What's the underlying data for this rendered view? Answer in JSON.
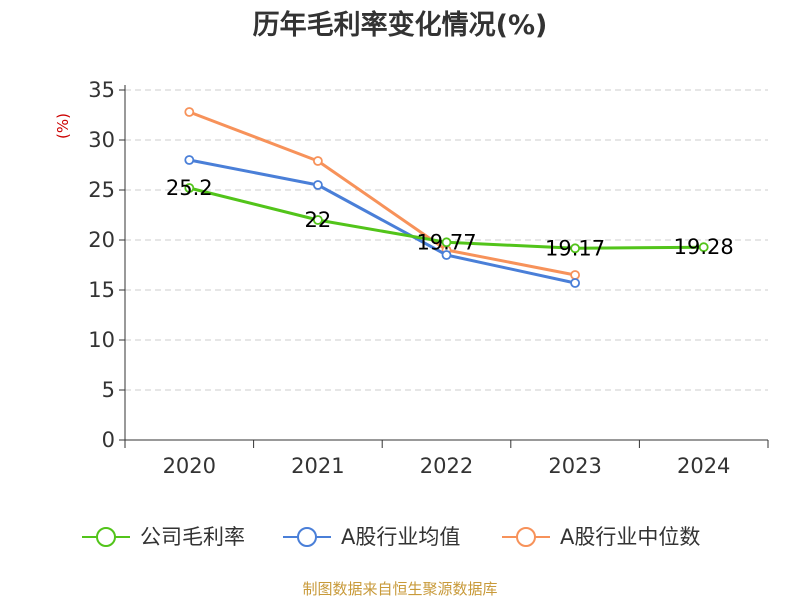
{
  "chart_data": {
    "type": "line",
    "title": "历年毛利率变化情况(%)",
    "ylabel": "(%)",
    "xlabel": "",
    "categories": [
      "2020",
      "2021",
      "2022",
      "2023",
      "2024"
    ],
    "ylim": [
      0,
      35
    ],
    "yticks": [
      0,
      5,
      10,
      15,
      20,
      25,
      30,
      35
    ],
    "grid": true,
    "legend_position": "bottom",
    "series": [
      {
        "name": "公司毛利率",
        "color": "#52c41a",
        "values": [
          25.2,
          22,
          19.77,
          19.17,
          19.28
        ],
        "labels": [
          "25.2",
          "22",
          "19.77",
          "19.17",
          "19.28"
        ]
      },
      {
        "name": "A股行业均值",
        "color": "#4a7fd8",
        "values": [
          28.0,
          25.5,
          18.5,
          15.7,
          null
        ]
      },
      {
        "name": "A股行业中位数",
        "color": "#f7925a",
        "values": [
          32.8,
          27.9,
          19.0,
          16.5,
          null
        ]
      }
    ],
    "source": "制图数据来自恒生聚源数据库",
    "source_color": "#c89a3a"
  }
}
